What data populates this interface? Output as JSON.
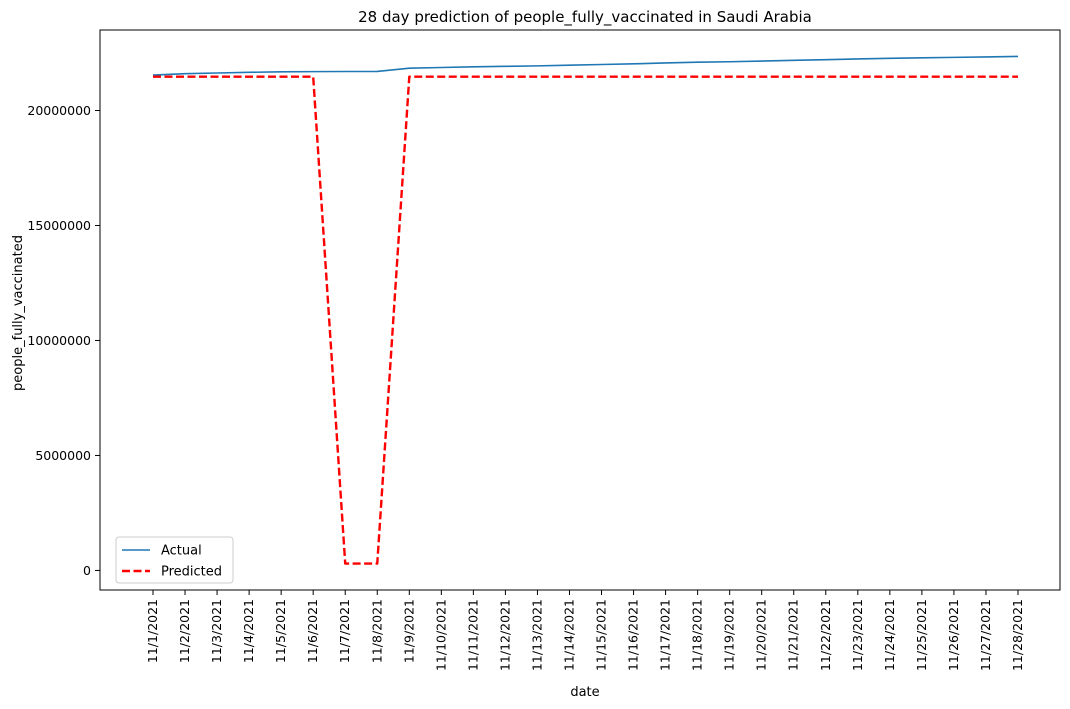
{
  "chart_data": {
    "type": "line",
    "title": "28 day prediction of people_fully_vaccinated in Saudi Arabia",
    "xlabel": "date",
    "ylabel": "people_fully_vaccinated",
    "x": [
      "11/1/2021",
      "11/2/2021",
      "11/3/2021",
      "11/4/2021",
      "11/5/2021",
      "11/6/2021",
      "11/7/2021",
      "11/8/2021",
      "11/9/2021",
      "11/10/2021",
      "11/11/2021",
      "11/12/2021",
      "11/13/2021",
      "11/14/2021",
      "11/15/2021",
      "11/16/2021",
      "11/17/2021",
      "11/18/2021",
      "11/19/2021",
      "11/20/2021",
      "11/21/2021",
      "11/22/2021",
      "11/23/2021",
      "11/24/2021",
      "11/25/2021",
      "11/26/2021",
      "11/27/2021",
      "11/28/2021"
    ],
    "ylim": [
      -850000,
      23500000
    ],
    "yticks": [
      0,
      5000000,
      10000000,
      15000000,
      20000000
    ],
    "grid": false,
    "legend_position": "lower-left",
    "series": [
      {
        "name": "Actual",
        "color": "#1f77b4",
        "style": "solid",
        "values": [
          21540000,
          21600000,
          21630000,
          21660000,
          21680000,
          21690000,
          21695000,
          21700000,
          21840000,
          21870000,
          21900000,
          21920000,
          21940000,
          21970000,
          22000000,
          22030000,
          22070000,
          22100000,
          22120000,
          22150000,
          22180000,
          22210000,
          22240000,
          22270000,
          22290000,
          22310000,
          22330000,
          22350000
        ]
      },
      {
        "name": "Predicted",
        "color": "#ff0000",
        "style": "dashed",
        "values": [
          21470000,
          21470000,
          21470000,
          21470000,
          21470000,
          21470000,
          300000,
          300000,
          21470000,
          21470000,
          21470000,
          21470000,
          21470000,
          21470000,
          21470000,
          21470000,
          21470000,
          21470000,
          21470000,
          21470000,
          21470000,
          21470000,
          21470000,
          21470000,
          21470000,
          21470000,
          21470000,
          21470000
        ]
      }
    ]
  }
}
